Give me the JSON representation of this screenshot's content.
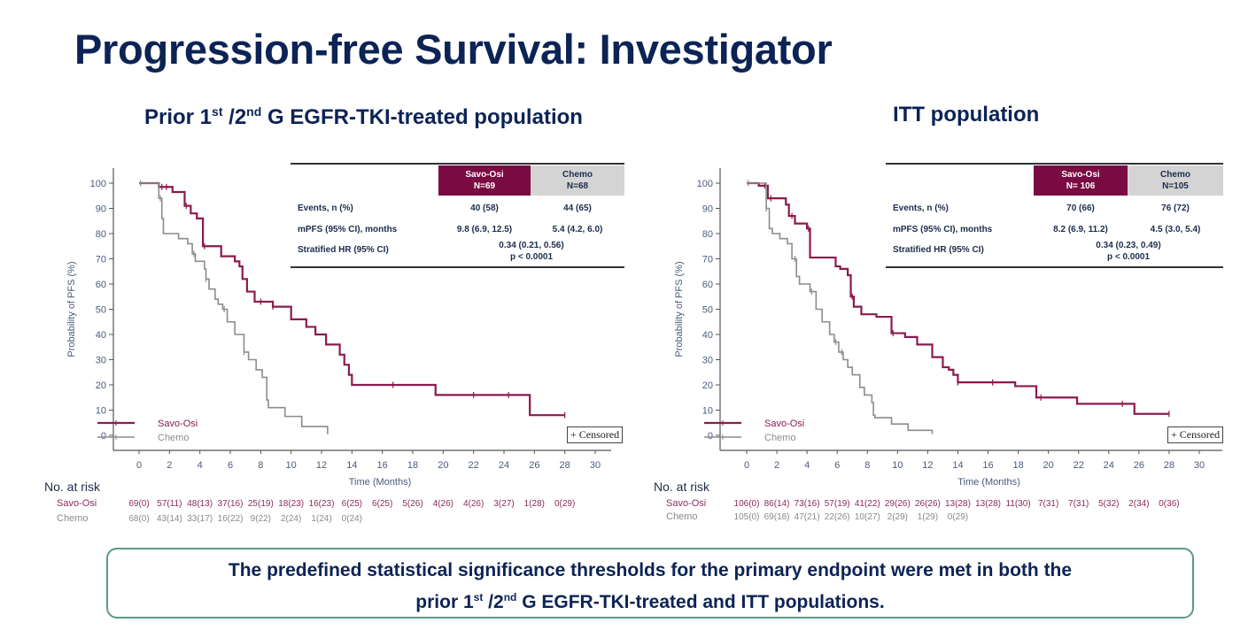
{
  "header": {
    "title": "Progression-free Survival: Investigator"
  },
  "panels": [
    {
      "subtitle_pre": "Prior 1",
      "subtitle_sup1": "st",
      "subtitle_mid": " /2",
      "subtitle_sup2": "nd",
      "subtitle_post": " G EGFR-TKI-treated population",
      "table": {
        "arm1_name": "Savo-Osi",
        "arm1_n": "N=69",
        "arm2_name": "Chemo",
        "arm2_n": "N=68",
        "rows": [
          {
            "label": "Events, n (%)",
            "arm1": "40 (58)",
            "arm2": "44 (65)"
          },
          {
            "label": "mPFS (95% CI), months",
            "arm1": "9.8 (6.9, 12.5)",
            "arm2": "5.4 (4.2, 6.0)"
          },
          {
            "label": "Stratified HR (95% CI)",
            "combined": "0.34 (0.21, 0.56)",
            "pvalue": "p < 0.0001"
          }
        ]
      },
      "at_risk": {
        "title": "No. at risk",
        "savo_label": "Savo-Osi",
        "chemo_label": "Chemo",
        "savo": [
          "69(0)",
          "57(11)",
          "48(13)",
          "37(16)",
          "25(19)",
          "18(23)",
          "16(23)",
          "6(25)",
          "6(25)",
          "5(26)",
          "4(26)",
          "4(26)",
          "3(27)",
          "1(28)",
          "0(29)"
        ],
        "chemo": [
          "68(0)",
          "43(14)",
          "33(17)",
          "16(22)",
          "9(22)",
          "2(24)",
          "1(24)",
          "0(24)"
        ]
      }
    },
    {
      "subtitle_pre": "ITT population",
      "subtitle_sup1": "",
      "subtitle_mid": "",
      "subtitle_sup2": "",
      "subtitle_post": "",
      "table": {
        "arm1_name": "Savo-Osi",
        "arm1_n": "N= 106",
        "arm2_name": "Chemo",
        "arm2_n": "N=105",
        "rows": [
          {
            "label": "Events, n (%)",
            "arm1": "70 (66)",
            "arm2": "76 (72)"
          },
          {
            "label": "mPFS (95% CI), months",
            "arm1": "8.2 (6.9, 11.2)",
            "arm2": "4.5 (3.0, 5.4)"
          },
          {
            "label": "Stratified HR (95% CI)",
            "combined": "0.34 (0.23, 0.49)",
            "pvalue": "p < 0.0001"
          }
        ]
      },
      "at_risk": {
        "title": "No. at risk",
        "savo_label": "Savo-Osi",
        "chemo_label": "Chemo",
        "savo": [
          "106(0)",
          "86(14)",
          "73(16)",
          "57(19)",
          "41(22)",
          "29(26)",
          "26(26)",
          "13(28)",
          "13(28)",
          "11(30)",
          "7(31)",
          "7(31)",
          "5(32)",
          "2(34)",
          "0(36)"
        ],
        "chemo": [
          "105(0)",
          "69(18)",
          "47(21)",
          "22(26)",
          "10(27)",
          "2(29)",
          "1(29)",
          "0(29)"
        ]
      }
    }
  ],
  "callout": {
    "line1": "The predefined statistical significance thresholds for the primary endpoint were met in both the",
    "line2_pre": "prior 1",
    "line2_sup1": "st",
    "line2_mid": " /2",
    "line2_sup2": "nd",
    "line2_post": " G EGFR-TKI-treated and ITT populations."
  },
  "colors": {
    "savo": "#8b1a4f",
    "chemo": "#8c8c8c",
    "title": "#0c2356"
  },
  "chart_data": [
    {
      "type": "line",
      "title": "Prior 1st /2nd G EGFR-TKI-treated population",
      "xlabel": "Time (Months)",
      "ylabel": "Probability of PFS (%)",
      "xlim": [
        0,
        30
      ],
      "ylim": [
        0,
        100
      ],
      "xticks": [
        0,
        2,
        4,
        6,
        8,
        10,
        12,
        14,
        16,
        18,
        20,
        22,
        24,
        26,
        28,
        30
      ],
      "yticks": [
        0,
        10,
        20,
        30,
        40,
        50,
        60,
        70,
        80,
        90,
        100
      ],
      "legend": [
        "Savo-Osi",
        "Chemo"
      ],
      "legend_position": "bottom-left",
      "censored_note": "+ Censored",
      "series": [
        {
          "name": "Savo-Osi",
          "x": [
            0,
            1.3,
            2.2,
            3.0,
            3.4,
            3.8,
            4.2,
            5.4,
            6.3,
            6.6,
            6.8,
            7.1,
            7.6,
            8.8,
            10.0,
            11.0,
            11.6,
            12.3,
            13.2,
            13.5,
            13.8,
            14.0,
            19.5,
            25.7,
            28.0
          ],
          "y": [
            100,
            98.5,
            96.5,
            91,
            88,
            86,
            75,
            71,
            69,
            67,
            62,
            57,
            53,
            51,
            46,
            43,
            40,
            36,
            32,
            28,
            24,
            20,
            16,
            8,
            8
          ],
          "censor_x": [
            1.5,
            1.8,
            3.1,
            4.3,
            8.0,
            8.8,
            16.7,
            22.0,
            24.3,
            28.0
          ]
        },
        {
          "name": "Chemo",
          "x": [
            0,
            1.3,
            1.5,
            1.6,
            2.6,
            3.2,
            3.5,
            3.7,
            4.3,
            4.4,
            4.6,
            5.0,
            5.2,
            5.5,
            5.8,
            6.3,
            6.9,
            7.2,
            7.7,
            8.1,
            8.4,
            8.5,
            9.6,
            10.7,
            12.4
          ],
          "y": [
            100,
            94,
            86,
            80,
            78,
            76,
            72,
            69,
            66,
            62,
            58,
            54,
            52,
            50,
            45,
            40,
            33,
            30,
            26,
            23,
            14,
            11,
            7.5,
            3.5,
            0.5
          ],
          "censor_x": [
            0.1,
            1.4,
            3.6,
            4.4,
            5.6,
            6.9
          ]
        }
      ]
    },
    {
      "type": "line",
      "title": "ITT population",
      "xlabel": "Time (Months)",
      "ylabel": "Probability of PFS (%)",
      "xlim": [
        0,
        30
      ],
      "ylim": [
        0,
        100
      ],
      "xticks": [
        0,
        2,
        4,
        6,
        8,
        10,
        12,
        14,
        16,
        18,
        20,
        22,
        24,
        26,
        28,
        30
      ],
      "yticks": [
        0,
        10,
        20,
        30,
        40,
        50,
        60,
        70,
        80,
        90,
        100
      ],
      "legend": [
        "Savo-Osi",
        "Chemo"
      ],
      "legend_position": "bottom-left",
      "censored_note": "+ Censored",
      "series": [
        {
          "name": "Savo-Osi",
          "x": [
            0,
            0.8,
            1.4,
            1.6,
            2.6,
            2.8,
            3.2,
            4.0,
            4.2,
            5.9,
            6.2,
            6.7,
            6.9,
            7.1,
            7.6,
            8.6,
            9.6,
            10.5,
            11.3,
            12.3,
            13.0,
            13.4,
            13.7,
            14.0,
            17.8,
            19.2,
            21.9,
            25.7,
            28.0
          ],
          "y": [
            100,
            99,
            94,
            94,
            91.5,
            87,
            84,
            82,
            70.5,
            67,
            66,
            63.5,
            55,
            51,
            48,
            47,
            40.5,
            39,
            36,
            31,
            27,
            26,
            24,
            21,
            19.5,
            15,
            12.5,
            8.5,
            8.5
          ],
          "censor_x": [
            1.2,
            1.6,
            3.0,
            4.1,
            7.0,
            9.7,
            14.0,
            16.3,
            19.5,
            24.9,
            28.0
          ]
        },
        {
          "name": "Chemo",
          "x": [
            0,
            1.3,
            1.5,
            1.7,
            2.2,
            2.7,
            3.0,
            3.3,
            3.5,
            3.7,
            4.2,
            4.6,
            5.0,
            5.5,
            5.8,
            6.1,
            6.4,
            6.7,
            7.0,
            7.5,
            7.8,
            8.3,
            8.4,
            8.5,
            9.6,
            10.7,
            12.3
          ],
          "y": [
            100,
            90,
            82,
            80,
            78,
            76,
            70,
            63,
            60,
            60,
            57,
            50,
            45,
            40,
            37,
            33,
            30,
            27,
            24,
            19,
            16,
            13,
            8,
            7,
            4.5,
            2,
            0.5
          ],
          "censor_x": [
            0.1,
            1.3,
            3.2,
            4.3,
            5.9,
            6.3
          ]
        }
      ]
    }
  ]
}
